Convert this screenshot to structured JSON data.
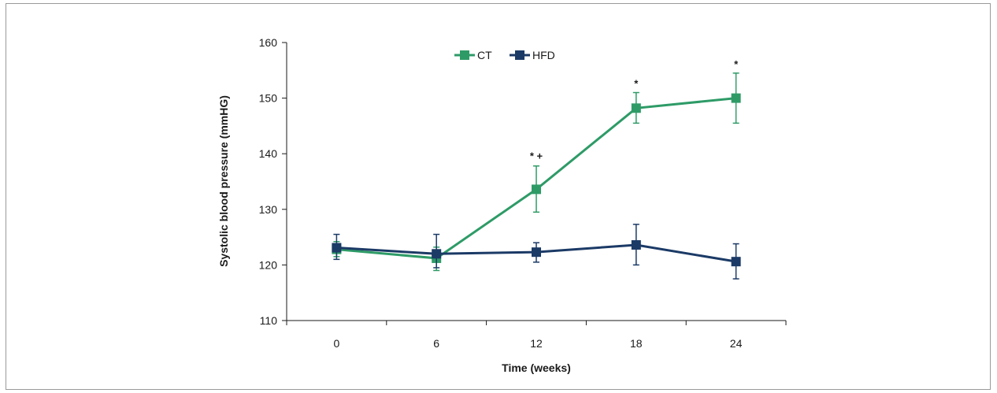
{
  "chart_data": {
    "type": "line",
    "title": "",
    "xlabel": "Time (weeks)",
    "ylabel": "Systolic blood pressure (mmHG)",
    "x": [
      0,
      6,
      12,
      18,
      24
    ],
    "x_tick_labels": [
      "0",
      "6",
      "12",
      "18",
      "24"
    ],
    "ylim": [
      110,
      160
    ],
    "y_ticks": [
      110,
      120,
      130,
      140,
      150,
      160
    ],
    "legend_position": "top-center",
    "grid": false,
    "series": [
      {
        "name": "CT",
        "color": "#2e9b67",
        "marker": "square",
        "values": [
          122.8,
          121.2,
          133.6,
          148.2,
          150.0
        ],
        "error_low": [
          121.5,
          119.0,
          129.5,
          145.5,
          145.5
        ],
        "error_high": [
          124.2,
          123.2,
          137.8,
          151.0,
          154.5
        ]
      },
      {
        "name": "HFD",
        "color": "#1b3a66",
        "marker": "square",
        "values": [
          123.1,
          122.0,
          122.3,
          123.6,
          120.6
        ],
        "error_low": [
          121.0,
          119.5,
          120.5,
          120.0,
          117.5
        ],
        "error_high": [
          125.5,
          125.5,
          124.0,
          127.3,
          123.8
        ]
      }
    ],
    "annotations": [
      {
        "x": 12,
        "y": 139.0,
        "text": "* +"
      },
      {
        "x": 18,
        "y": 152.0,
        "text": "*"
      },
      {
        "x": 24,
        "y": 155.5,
        "text": "*"
      }
    ]
  }
}
